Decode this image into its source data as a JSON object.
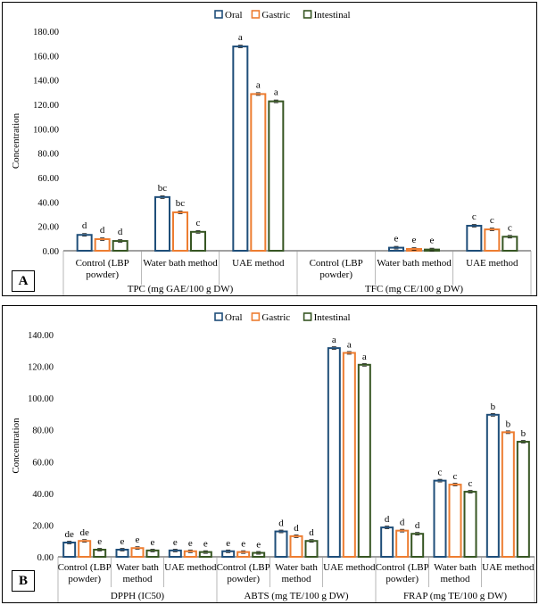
{
  "legend": {
    "oral": "Oral",
    "gastric": "Gastric",
    "intestinal": "Intestinal"
  },
  "colors": {
    "oral": "#1f4e79",
    "gastric": "#ed7d31",
    "intestinal": "#375623"
  },
  "panels": {
    "a_label": "A",
    "b_label": "B"
  },
  "chart_data": [
    {
      "id": "A",
      "type": "bar",
      "ylabel": "Concentration",
      "ylim": [
        0,
        180
      ],
      "yticks": [
        "0.00",
        "20.00",
        "40.00",
        "60.00",
        "80.00",
        "100.00",
        "120.00",
        "140.00",
        "160.00",
        "180.00"
      ],
      "groups": [
        {
          "name": "TPC (mg GAE/100 g DW)",
          "categories": [
            {
              "label": [
                "Control (LBP",
                "powder)"
              ],
              "values": [
                13,
                9.5,
                8
              ],
              "letters": [
                "d",
                "d",
                "d"
              ]
            },
            {
              "label": [
                "Water bath method"
              ],
              "values": [
                44,
                31.5,
                15.5
              ],
              "letters": [
                "bc",
                "bc",
                "c"
              ]
            },
            {
              "label": [
                "UAE method"
              ],
              "values": [
                167.5,
                128.5,
                122.5
              ],
              "letters": [
                "a",
                "a",
                "a"
              ]
            }
          ]
        },
        {
          "name": "TFC (mg CE/100 g DW)",
          "categories": [
            {
              "label": [
                "Control (LBP",
                "powder)"
              ],
              "values": [
                0,
                0,
                0
              ],
              "letters": [
                "",
                "",
                ""
              ]
            },
            {
              "label": [
                "Water bath method"
              ],
              "values": [
                2.5,
                1.5,
                1
              ],
              "letters": [
                "e",
                "e",
                "e"
              ]
            },
            {
              "label": [
                "UAE method"
              ],
              "values": [
                20.5,
                17.5,
                11.5
              ],
              "letters": [
                "c",
                "c",
                "c"
              ]
            }
          ]
        }
      ]
    },
    {
      "id": "B",
      "type": "bar",
      "ylabel": "Concentration",
      "ylim": [
        0,
        140
      ],
      "yticks": [
        "0.00",
        "20.00",
        "40.00",
        "60.00",
        "80.00",
        "100.00",
        "120.00",
        "140.00"
      ],
      "groups": [
        {
          "name": "DPPH (IC50)",
          "categories": [
            {
              "label": [
                "Control (LBP",
                "powder)"
              ],
              "values": [
                9,
                10,
                4.5
              ],
              "letters": [
                "de",
                "de",
                "e"
              ]
            },
            {
              "label": [
                "Water bath",
                "method"
              ],
              "values": [
                4.5,
                5.5,
                4
              ],
              "letters": [
                "e",
                "e",
                "e"
              ]
            },
            {
              "label": [
                "UAE method"
              ],
              "values": [
                4,
                3.5,
                3
              ],
              "letters": [
                "e",
                "e",
                "e"
              ]
            }
          ]
        },
        {
          "name": "ABTS (mg TE/100 g DW)",
          "categories": [
            {
              "label": [
                "Control (LBP",
                "powder)"
              ],
              "values": [
                3.5,
                3,
                2.5
              ],
              "letters": [
                "e",
                "e",
                "e"
              ]
            },
            {
              "label": [
                "Water bath",
                "method"
              ],
              "values": [
                16,
                13,
                10
              ],
              "letters": [
                "d",
                "d",
                "d"
              ]
            },
            {
              "label": [
                "UAE method"
              ],
              "values": [
                131.5,
                128.5,
                121
              ],
              "letters": [
                "a",
                "a",
                "a"
              ]
            }
          ]
        },
        {
          "name": "FRAP (mg TE/100 g DW)",
          "categories": [
            {
              "label": [
                "Control (LBP",
                "powder)"
              ],
              "values": [
                18.5,
                16.5,
                14.5
              ],
              "letters": [
                "d",
                "d",
                "d"
              ]
            },
            {
              "label": [
                "Water bath",
                "method"
              ],
              "values": [
                48,
                45.5,
                41
              ],
              "letters": [
                "c",
                "c",
                "c"
              ]
            },
            {
              "label": [
                "UAE method"
              ],
              "values": [
                89.5,
                78.5,
                72.5
              ],
              "letters": [
                "b",
                "b",
                "b"
              ]
            }
          ]
        }
      ]
    }
  ]
}
